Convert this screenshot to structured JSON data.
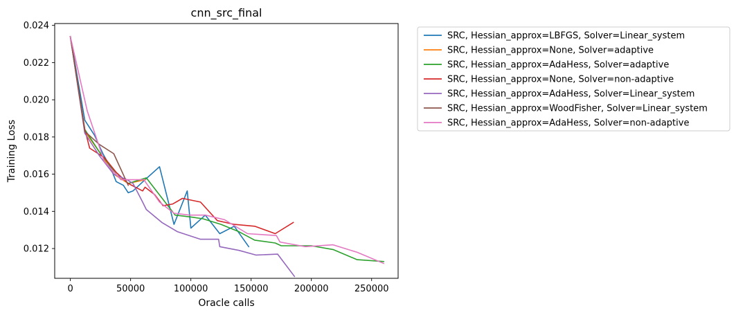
{
  "chart_data": {
    "type": "line",
    "title": "cnn_src_final",
    "xlabel": "Oracle calls",
    "ylabel": "Training Loss",
    "xlim": [
      -13000,
      272000
    ],
    "ylim": [
      0.0104,
      0.0241
    ],
    "xticks": [
      0,
      50000,
      100000,
      150000,
      200000,
      250000
    ],
    "xtick_labels": [
      "0",
      "50000",
      "100000",
      "150000",
      "200000",
      "250000"
    ],
    "yticks": [
      0.012,
      0.014,
      0.016,
      0.018,
      0.02,
      0.022,
      0.024
    ],
    "ytick_labels": [
      "0.012",
      "0.014",
      "0.016",
      "0.018",
      "0.020",
      "0.022",
      "0.024"
    ],
    "grid": false,
    "legend_position": "outside-right-top",
    "series": [
      {
        "name": "SRC, Hessian_approx=LBFGS, Solver=Linear_system",
        "color": "#1f77b4",
        "x": [
          0,
          12000,
          20000,
          27000,
          33000,
          38000,
          44000,
          48000,
          52000,
          62000,
          74000,
          86000,
          97000,
          100000,
          112000,
          124000,
          136000,
          148000
        ],
        "y": [
          0.0234,
          0.0189,
          0.0181,
          0.0171,
          0.0164,
          0.0156,
          0.0154,
          0.015,
          0.0151,
          0.0157,
          0.0164,
          0.0133,
          0.0151,
          0.0131,
          0.0138,
          0.0128,
          0.0132,
          0.0121
        ]
      },
      {
        "name": "SRC, Hessian_approx=None, Solver=adaptive",
        "color": "#ff7f0e",
        "x": [
          0,
          12000,
          24000,
          36000,
          48000,
          62000
        ],
        "y": [
          0.0234,
          0.0183,
          0.0172,
          0.016,
          0.0155,
          0.0157
        ]
      },
      {
        "name": "SRC, Hessian_approx=AdaHess, Solver=adaptive",
        "color": "#2ca02c",
        "x": [
          0,
          12000,
          24000,
          36000,
          48000,
          63000,
          87000,
          100000,
          110000,
          125000,
          140000,
          153000,
          170000,
          175000,
          200000,
          218000,
          238000,
          260000
        ],
        "y": [
          0.0234,
          0.0184,
          0.0172,
          0.0162,
          0.0155,
          0.0158,
          0.0138,
          0.0137,
          0.0136,
          0.0133,
          0.0129,
          0.01245,
          0.0123,
          0.01215,
          0.01215,
          0.01195,
          0.0114,
          0.0113
        ]
      },
      {
        "name": "SRC, Hessian_approx=None, Solver=non-adaptive",
        "color": "#d62728",
        "x": [
          0,
          12000,
          16000,
          28000,
          38000,
          48000,
          60000,
          62000,
          70000,
          77000,
          85000,
          93000,
          108000,
          122000,
          136000,
          153000,
          170000,
          185000
        ],
        "y": [
          0.0234,
          0.0184,
          0.0174,
          0.0169,
          0.0161,
          0.0155,
          0.0151,
          0.0153,
          0.0149,
          0.0143,
          0.0144,
          0.0147,
          0.0145,
          0.0135,
          0.0133,
          0.0132,
          0.0128,
          0.0134
        ]
      },
      {
        "name": "SRC, Hessian_approx=AdaHess, Solver=Linear_system",
        "color": "#9467bd",
        "x": [
          0,
          12000,
          24000,
          36000,
          47000,
          52000,
          60000,
          63000,
          76000,
          89000,
          108000,
          123000,
          124000,
          140000,
          154000,
          172000,
          186000
        ],
        "y": [
          0.0234,
          0.0182,
          0.017,
          0.016,
          0.0157,
          0.0155,
          0.0145,
          0.0141,
          0.0134,
          0.0129,
          0.0125,
          0.0125,
          0.0121,
          0.0119,
          0.01165,
          0.0117,
          0.0105
        ]
      },
      {
        "name": "SRC, Hessian_approx=WoodFisher, Solver=Linear_system",
        "color": "#8c564b",
        "x": [
          0,
          12000,
          24000,
          36000,
          48000
        ],
        "y": [
          0.0234,
          0.0183,
          0.0176,
          0.0171,
          0.0154
        ]
      },
      {
        "name": "SRC, Hessian_approx=AdaHess, Solver=non-adaptive",
        "color": "#e377c2",
        "x": [
          0,
          14000,
          28000,
          42000,
          61000,
          74000,
          86000,
          99000,
          112000,
          128000,
          147000,
          171000,
          174000,
          195000,
          218000,
          238000,
          260000
        ],
        "y": [
          0.0234,
          0.0194,
          0.0167,
          0.0157,
          0.0157,
          0.0145,
          0.0139,
          0.0138,
          0.0138,
          0.01355,
          0.0128,
          0.0127,
          0.01235,
          0.0121,
          0.0122,
          0.0118,
          0.0112
        ]
      }
    ]
  }
}
